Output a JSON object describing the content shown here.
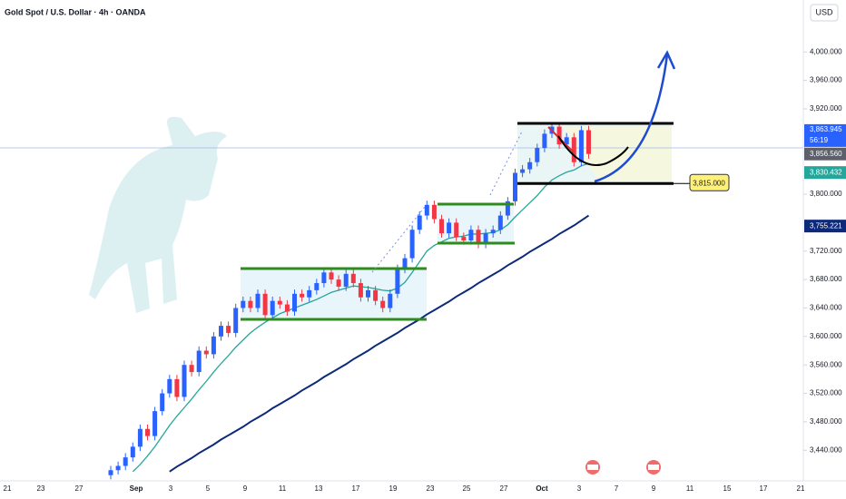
{
  "chart_data": {
    "type": "candlestick",
    "title": "Gold Spot / U.S. Dollar · 4h · OANDA",
    "currency": "USD",
    "up_color": "#2962ff",
    "down_color": "#f23645",
    "open": [
      3405,
      3412,
      3418,
      3430,
      3445,
      3470,
      3460,
      3495,
      3520,
      3540,
      3515,
      3560,
      3550,
      3580,
      3575,
      3600,
      3615,
      3605,
      3640,
      3650,
      3640,
      3660,
      3630,
      3650,
      3645,
      3635,
      3660,
      3655,
      3665,
      3675,
      3690,
      3680,
      3670,
      3688,
      3675,
      3655,
      3665,
      3650,
      3640,
      3660,
      3695,
      3710,
      3750,
      3770,
      3785,
      3765,
      3745,
      3760,
      3740,
      3735,
      3750,
      3730,
      3745,
      3750,
      3770,
      3790,
      3830,
      3835,
      3845,
      3865,
      3885,
      3895,
      3870,
      3880,
      3845,
      3890
    ],
    "high": [
      3418,
      3424,
      3436,
      3451,
      3476,
      3476,
      3501,
      3526,
      3546,
      3546,
      3566,
      3566,
      3586,
      3586,
      3606,
      3621,
      3621,
      3646,
      3656,
      3656,
      3666,
      3666,
      3656,
      3656,
      3651,
      3666,
      3666,
      3671,
      3681,
      3696,
      3696,
      3686,
      3694,
      3694,
      3681,
      3671,
      3671,
      3656,
      3666,
      3701,
      3716,
      3756,
      3776,
      3791,
      3791,
      3771,
      3766,
      3766,
      3746,
      3756,
      3756,
      3751,
      3756,
      3776,
      3796,
      3836,
      3841,
      3851,
      3871,
      3891,
      3901,
      3901,
      3886,
      3886,
      3896,
      3896
    ],
    "low": [
      3399,
      3406,
      3412,
      3424,
      3439,
      3454,
      3454,
      3489,
      3514,
      3509,
      3509,
      3544,
      3544,
      3569,
      3569,
      3594,
      3599,
      3599,
      3634,
      3634,
      3634,
      3624,
      3624,
      3639,
      3629,
      3629,
      3649,
      3649,
      3659,
      3669,
      3674,
      3664,
      3664,
      3669,
      3649,
      3649,
      3644,
      3634,
      3634,
      3654,
      3689,
      3704,
      3744,
      3764,
      3759,
      3739,
      3739,
      3734,
      3729,
      3729,
      3724,
      3724,
      3739,
      3744,
      3764,
      3784,
      3824,
      3829,
      3839,
      3859,
      3879,
      3864,
      3864,
      3839,
      3839,
      3850
    ],
    "close": [
      3412,
      3418,
      3430,
      3445,
      3470,
      3460,
      3495,
      3520,
      3540,
      3515,
      3560,
      3550,
      3580,
      3575,
      3600,
      3615,
      3605,
      3640,
      3650,
      3640,
      3660,
      3630,
      3650,
      3645,
      3635,
      3660,
      3655,
      3665,
      3675,
      3690,
      3680,
      3670,
      3688,
      3675,
      3655,
      3665,
      3650,
      3640,
      3660,
      3695,
      3710,
      3750,
      3770,
      3785,
      3765,
      3745,
      3760,
      3740,
      3735,
      3750,
      3730,
      3745,
      3750,
      3770,
      3790,
      3830,
      3835,
      3845,
      3865,
      3885,
      3895,
      3870,
      3880,
      3845,
      3890,
      3856.56
    ],
    "lines": [
      {
        "color": "#26a69a",
        "values": [
          null,
          null,
          null,
          3410,
          3420,
          3432,
          3445,
          3460,
          3475,
          3488,
          3500,
          3512,
          3525,
          3537,
          3550,
          3562,
          3573,
          3585,
          3595,
          3605,
          3613,
          3620,
          3626,
          3632,
          3636,
          3640,
          3644,
          3648,
          3652,
          3657,
          3662,
          3665,
          3668,
          3671,
          3670,
          3669,
          3667,
          3665,
          3664,
          3668,
          3676,
          3690,
          3705,
          3720,
          3728,
          3733,
          3738,
          3740,
          3741,
          3744,
          3744,
          3745,
          3746,
          3750,
          3757,
          3768,
          3778,
          3788,
          3798,
          3810,
          3820,
          3826,
          3831,
          3834,
          3840,
          3843
        ]
      },
      {
        "color": "#0d2a7a",
        "values": [
          null,
          null,
          null,
          null,
          null,
          null,
          null,
          null,
          3410,
          3417,
          3423,
          3429,
          3436,
          3442,
          3448,
          3455,
          3461,
          3467,
          3473,
          3480,
          3486,
          3492,
          3499,
          3505,
          3511,
          3517,
          3524,
          3530,
          3536,
          3543,
          3549,
          3555,
          3561,
          3568,
          3574,
          3580,
          3587,
          3593,
          3599,
          3605,
          3612,
          3618,
          3624,
          3631,
          3637,
          3643,
          3649,
          3656,
          3662,
          3668,
          3675,
          3681,
          3687,
          3693,
          3700,
          3706,
          3712,
          3719,
          3725,
          3731,
          3737,
          3744,
          3750,
          3756,
          3763,
          3770
        ]
      }
    ],
    "ylim": [
      3397,
      4073
    ],
    "yticks": [
      {
        "value": 4000,
        "label": "4,000.000"
      },
      {
        "value": 3960,
        "label": "3,960.000"
      },
      {
        "value": 3920,
        "label": "3,920.000"
      },
      {
        "value": 3800,
        "label": "3,800.000"
      },
      {
        "value": 3720,
        "label": "3,720.000"
      },
      {
        "value": 3680,
        "label": "3,680.000"
      },
      {
        "value": 3640,
        "label": "3,640.000"
      },
      {
        "value": 3600,
        "label": "3,600.000"
      },
      {
        "value": 3560,
        "label": "3,560.000"
      },
      {
        "value": 3520,
        "label": "3,520.000"
      },
      {
        "value": 3480,
        "label": "3,480.000"
      },
      {
        "value": 3440,
        "label": "3,440.000"
      }
    ],
    "x_labels": [
      "21",
      "23",
      "27",
      "Sep",
      "3",
      "5",
      "9",
      "11",
      "13",
      "17",
      "19",
      "23",
      "25",
      "27",
      "Oct",
      "3",
      "7",
      "9",
      "11",
      "15",
      "17",
      "21"
    ],
    "price_labels": [
      {
        "value": 3863.945,
        "label": "3,863.945",
        "countdown": "56:19",
        "color": "#2962ff"
      },
      {
        "value": 3856.56,
        "label": "3,856.560",
        "color": "#5d606b"
      },
      {
        "value": 3830.432,
        "label": "3,830.432",
        "color": "#26a69a"
      },
      {
        "value": 3755.221,
        "label": "3,755.221",
        "color": "#0d2a7a"
      }
    ],
    "support": {
      "value": 3815,
      "label": "3,815.000"
    }
  }
}
